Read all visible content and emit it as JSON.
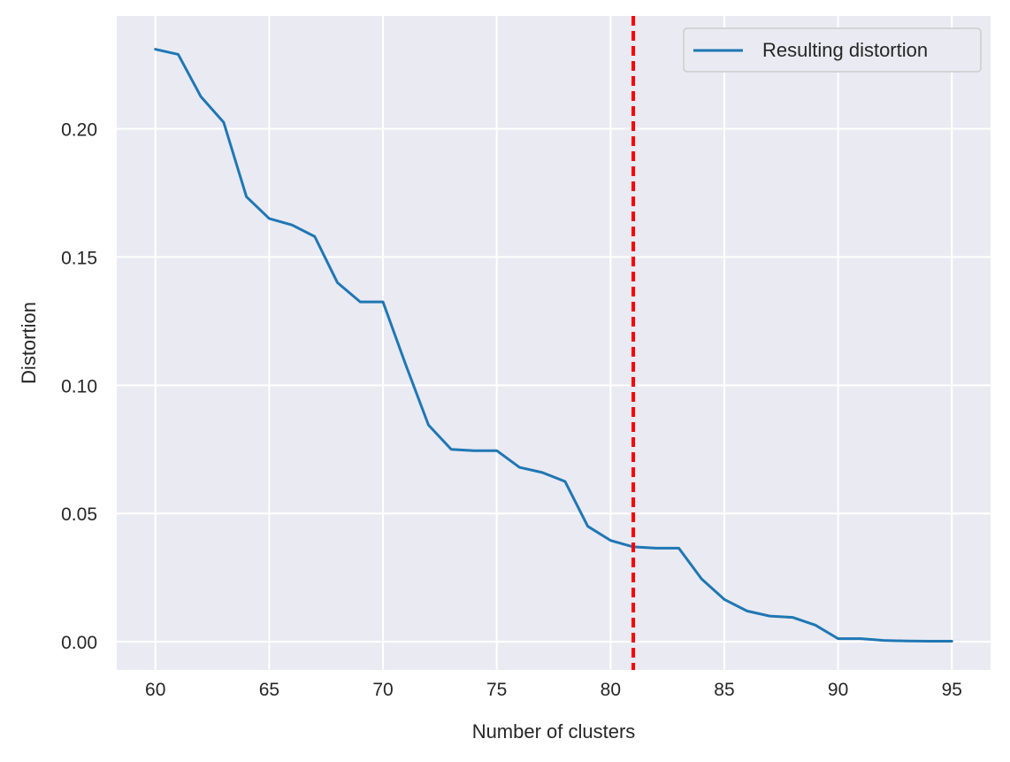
{
  "chart_data": {
    "type": "line",
    "title": "",
    "xlabel": "Number of clusters",
    "ylabel": "Distortion",
    "xlim": [
      58.3,
      96.7
    ],
    "ylim": [
      -0.011,
      0.244
    ],
    "xticks": [
      60,
      65,
      70,
      75,
      80,
      85,
      90,
      95
    ],
    "xtick_labels": [
      "60",
      "65",
      "70",
      "75",
      "80",
      "85",
      "90",
      "95"
    ],
    "yticks": [
      0.0,
      0.05,
      0.1,
      0.15,
      0.2
    ],
    "ytick_labels": [
      "0.00",
      "0.05",
      "0.10",
      "0.15",
      "0.20"
    ],
    "grid": true,
    "background": "#eaeaf2",
    "legend": {
      "position": "top-right",
      "entries": [
        "Resulting distortion"
      ]
    },
    "series": [
      {
        "name": "Resulting distortion",
        "color": "#1f77b4",
        "x": [
          60,
          61,
          62,
          63,
          64,
          65,
          66,
          67,
          68,
          69,
          70,
          71,
          72,
          73,
          74,
          75,
          76,
          77,
          78,
          79,
          80,
          81,
          82,
          83,
          84,
          85,
          86,
          87,
          88,
          89,
          90,
          91,
          92,
          93,
          94,
          95
        ],
        "y": [
          0.231,
          0.229,
          0.2125,
          0.2025,
          0.1735,
          0.165,
          0.1625,
          0.158,
          0.14,
          0.1325,
          0.1325,
          0.108,
          0.0845,
          0.075,
          0.0745,
          0.0745,
          0.068,
          0.066,
          0.0625,
          0.045,
          0.0395,
          0.037,
          0.0365,
          0.0365,
          0.0245,
          0.0165,
          0.012,
          0.01,
          0.0095,
          0.0065,
          0.0012,
          0.0012,
          0.0005,
          0.0003,
          0.0002,
          0.0002
        ]
      }
    ],
    "reference_line": {
      "orientation": "vertical",
      "x": 81,
      "color": "#ff0000",
      "style": "dashed"
    }
  }
}
